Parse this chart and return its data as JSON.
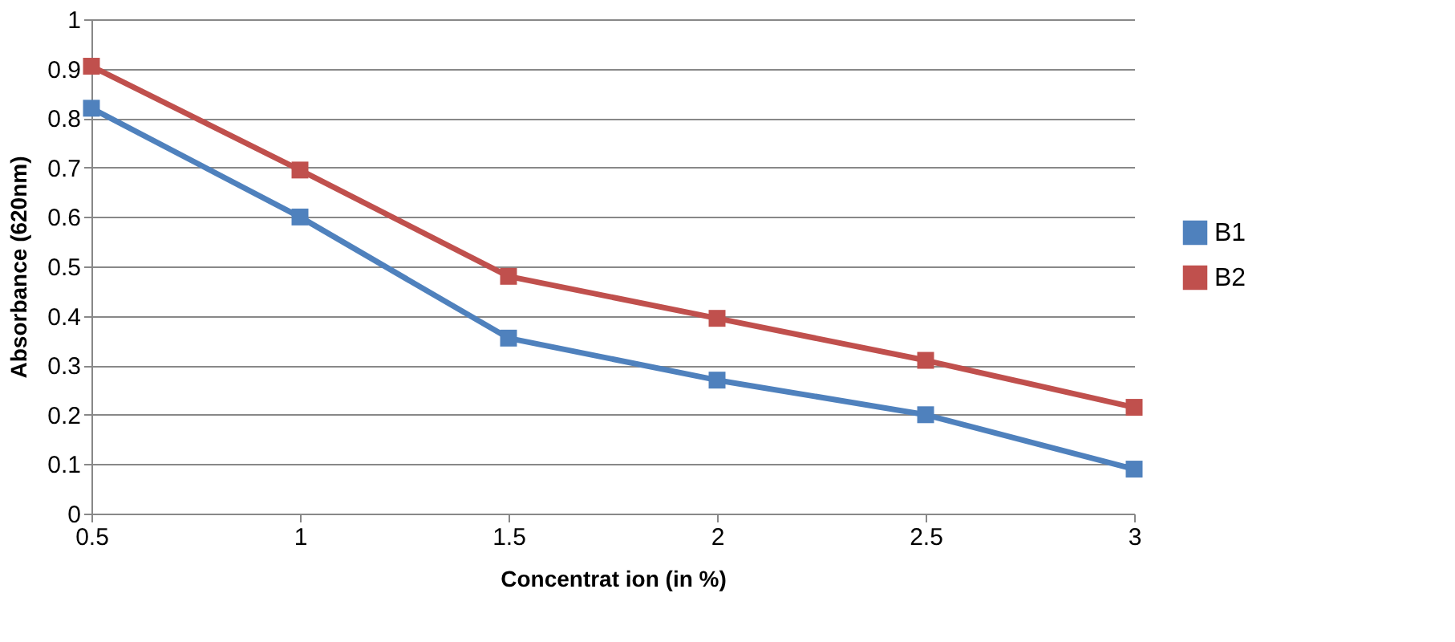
{
  "chart_data": {
    "type": "line",
    "xlabel": "Concentrat ion (in %)",
    "ylabel": "Absorbance (620nm)",
    "x": [
      0.5,
      1,
      1.5,
      2,
      2.5,
      3
    ],
    "series": [
      {
        "name": "B1",
        "color": "#4f81bd",
        "values": [
          0.82,
          0.6,
          0.355,
          0.27,
          0.2,
          0.09
        ]
      },
      {
        "name": "B2",
        "color": "#c0504d",
        "values": [
          0.905,
          0.695,
          0.48,
          0.395,
          0.31,
          0.215
        ]
      }
    ],
    "xlim": [
      0.5,
      3
    ],
    "xticks": [
      0.5,
      1,
      1.5,
      2,
      2.5,
      3
    ],
    "ylim": [
      0,
      1
    ],
    "yticks": [
      0,
      0.1,
      0.2,
      0.3,
      0.4,
      0.5,
      0.6,
      0.7,
      0.8,
      0.9,
      1
    ],
    "grid": "y",
    "legend": "right",
    "marker": "square",
    "line_style": "solid"
  }
}
